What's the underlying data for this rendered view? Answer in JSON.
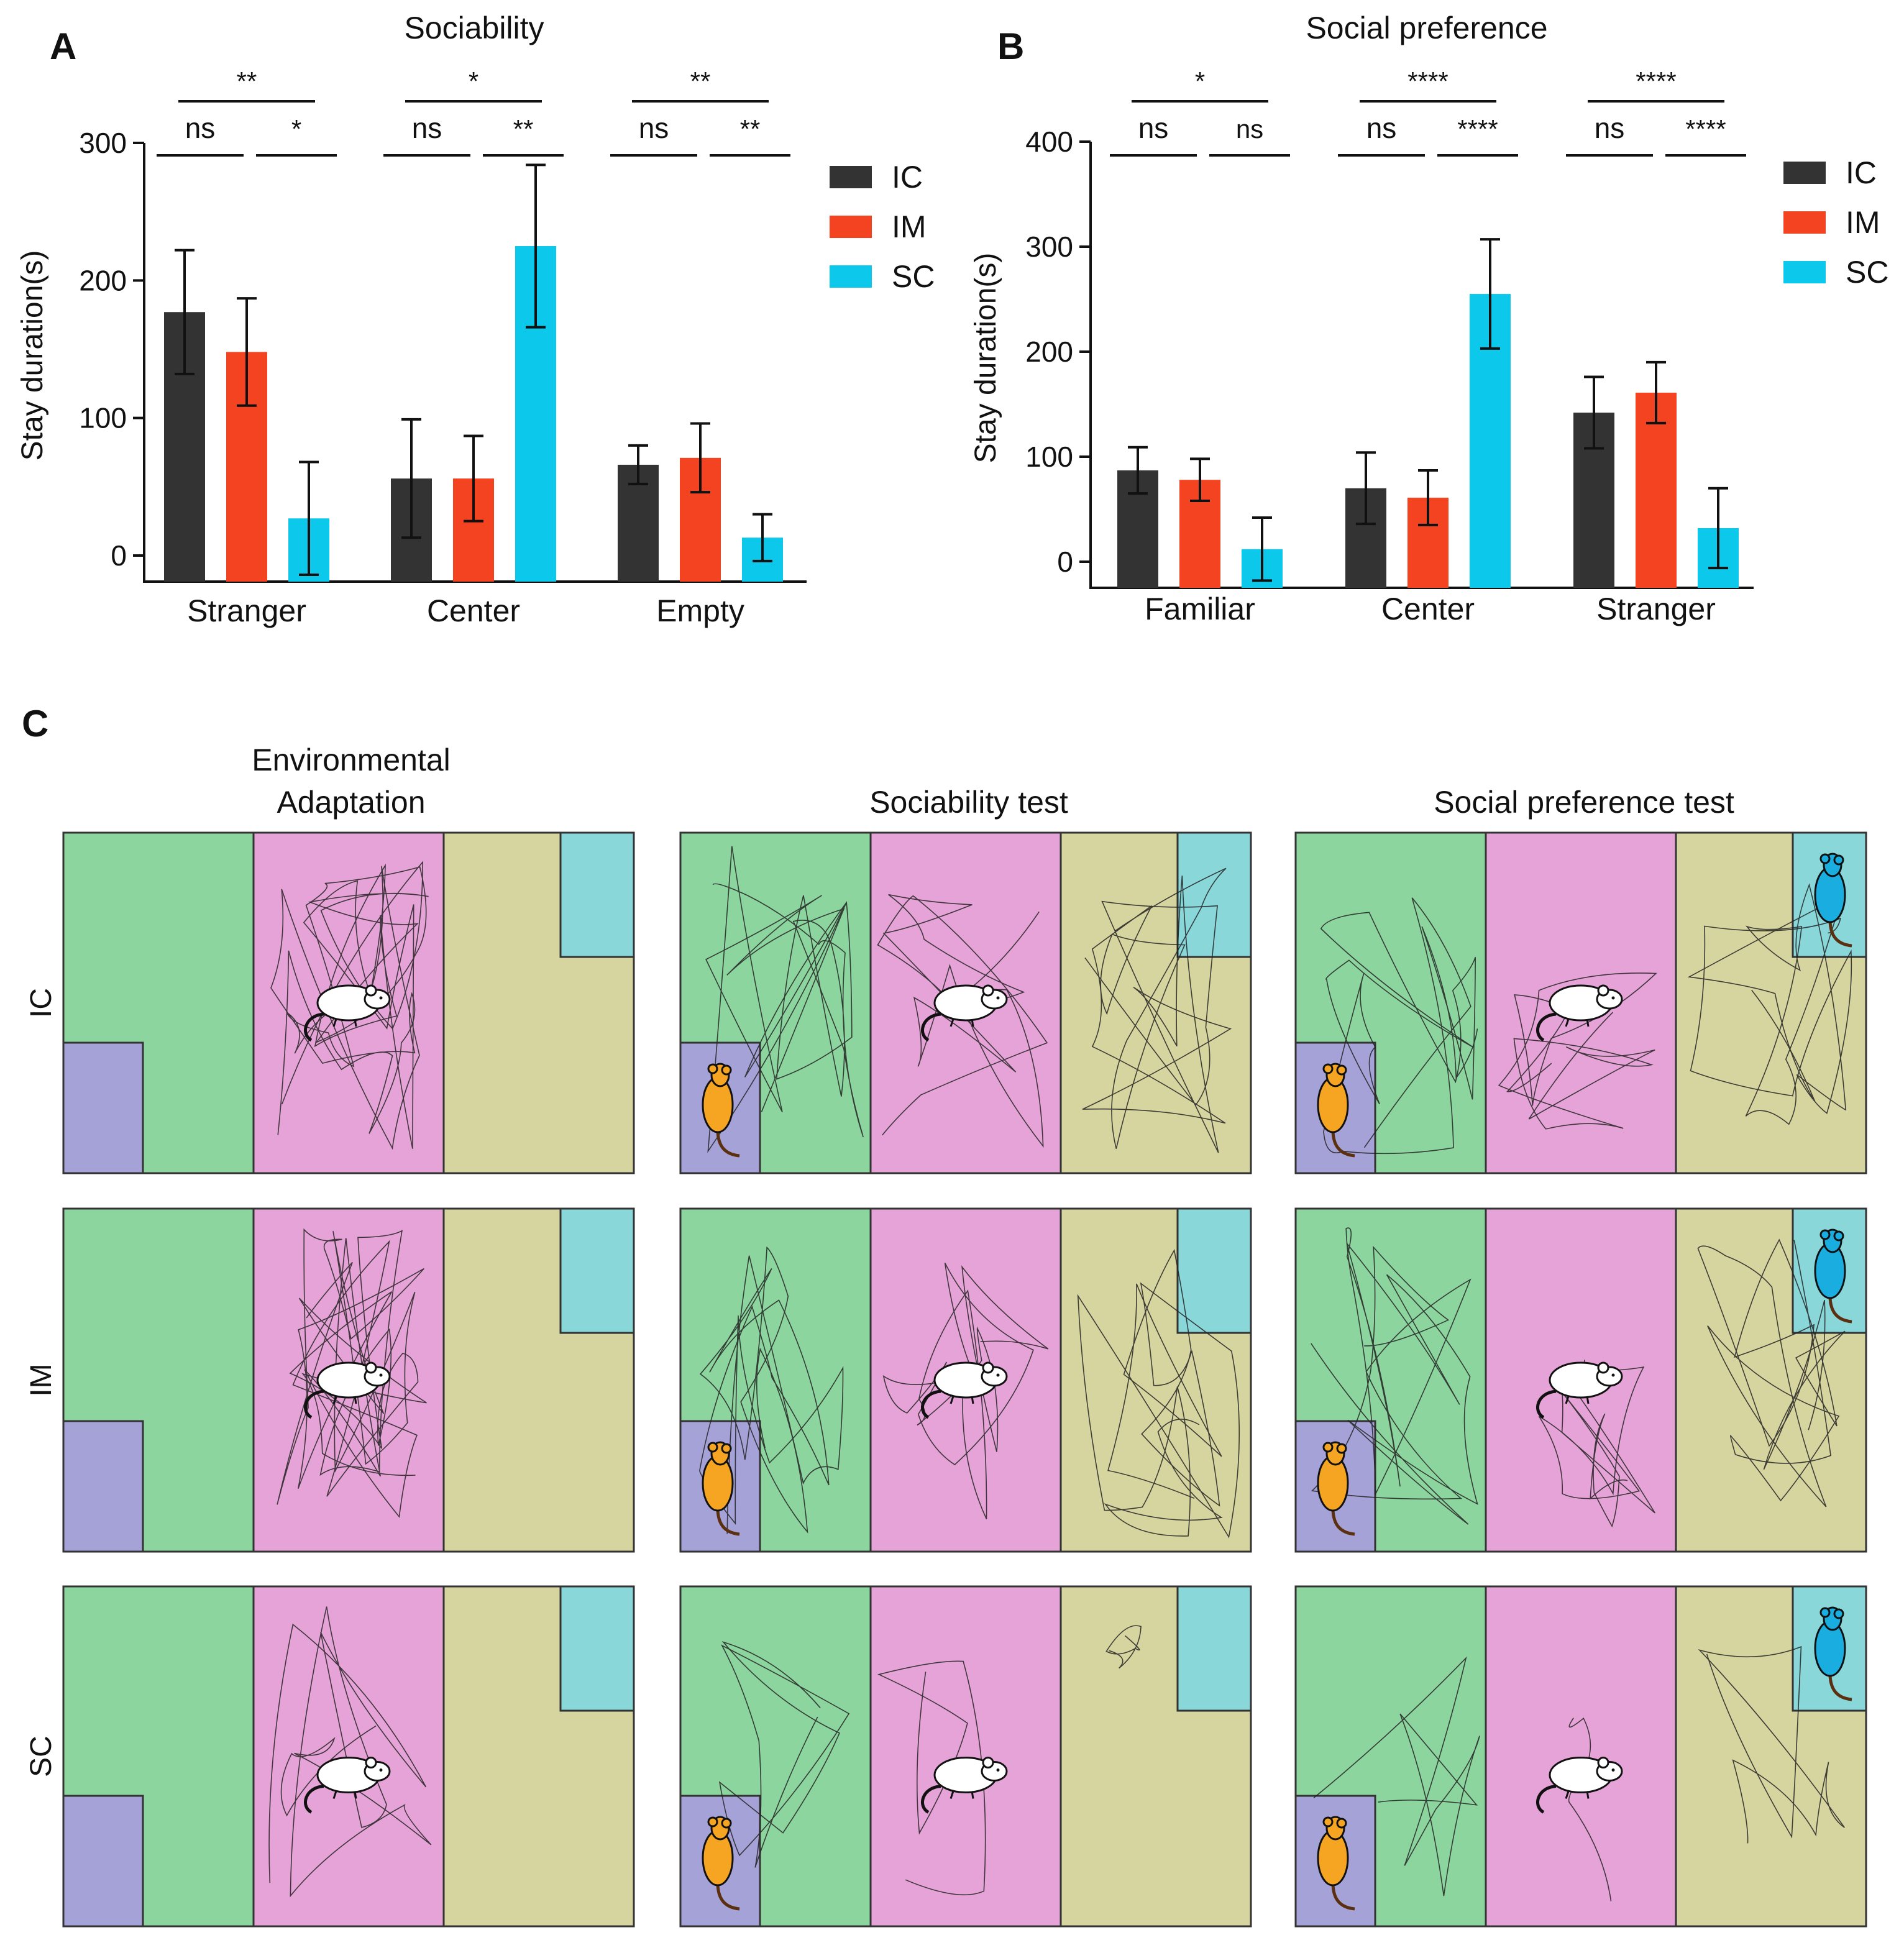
{
  "panels": {
    "a": {
      "letter": "A"
    },
    "b": {
      "letter": "B"
    },
    "c": {
      "letter": "C"
    }
  },
  "legend": [
    {
      "label": "IC",
      "color": "#333333"
    },
    {
      "label": "IM",
      "color": "#f44321"
    },
    {
      "label": "SC",
      "color": "#0cc8ea"
    }
  ],
  "chart_data": [
    {
      "type": "bar",
      "title": "Sociability",
      "ylabel": "Stay duration(s)",
      "xlabel": "",
      "ylim": [
        0,
        300
      ],
      "yticks": [
        0,
        100,
        200,
        300
      ],
      "categories": [
        "Stranger",
        "Center",
        "Empty"
      ],
      "series": [
        {
          "name": "IC",
          "values": [
            177,
            56,
            66
          ],
          "errors": [
            45,
            43,
            14
          ]
        },
        {
          "name": "IM",
          "values": [
            148,
            56,
            71
          ],
          "errors": [
            39,
            31,
            25
          ]
        },
        {
          "name": "SC",
          "values": [
            27,
            225,
            13
          ],
          "errors": [
            41,
            59,
            17
          ]
        }
      ],
      "significance": [
        {
          "top": "**",
          "left": "ns",
          "right": "*"
        },
        {
          "top": "*",
          "left": "ns",
          "right": "**"
        },
        {
          "top": "**",
          "left": "ns",
          "right": "**"
        }
      ]
    },
    {
      "type": "bar",
      "title": "Social preference",
      "ylabel": "Stay duration(s)",
      "xlabel": "",
      "ylim": [
        0,
        400
      ],
      "yticks": [
        0,
        100,
        200,
        300,
        400
      ],
      "categories": [
        "Familiar",
        "Center",
        "Stranger"
      ],
      "series": [
        {
          "name": "IC",
          "values": [
            87,
            70,
            142
          ],
          "errors": [
            22,
            34,
            34
          ]
        },
        {
          "name": "IM",
          "values": [
            78,
            61,
            161
          ],
          "errors": [
            20,
            26,
            29
          ]
        },
        {
          "name": "SC",
          "values": [
            12,
            255,
            32
          ],
          "errors": [
            30,
            52,
            38
          ]
        }
      ],
      "significance": [
        {
          "top": "*",
          "left": "ns",
          "right": "ns"
        },
        {
          "top": "****",
          "left": "ns",
          "right": "****"
        },
        {
          "top": "****",
          "left": "ns",
          "right": "****"
        }
      ]
    }
  ],
  "trajectory_grid": {
    "columns": [
      "Environmental\nAdaptation",
      "Sociability test",
      "Social preference test"
    ],
    "rows": [
      "IC",
      "IM",
      "SC"
    ],
    "zone_colors": {
      "left": "#8cd59e",
      "center": "#e6a3d7",
      "right": "#d6d49f",
      "cage_left": "#a5a2d8",
      "cage_right": "#89d7d9",
      "white_mouse": "#ffffff",
      "familiar_mouse": "#f5a521",
      "stranger_mouse": "#1aaee0"
    }
  }
}
